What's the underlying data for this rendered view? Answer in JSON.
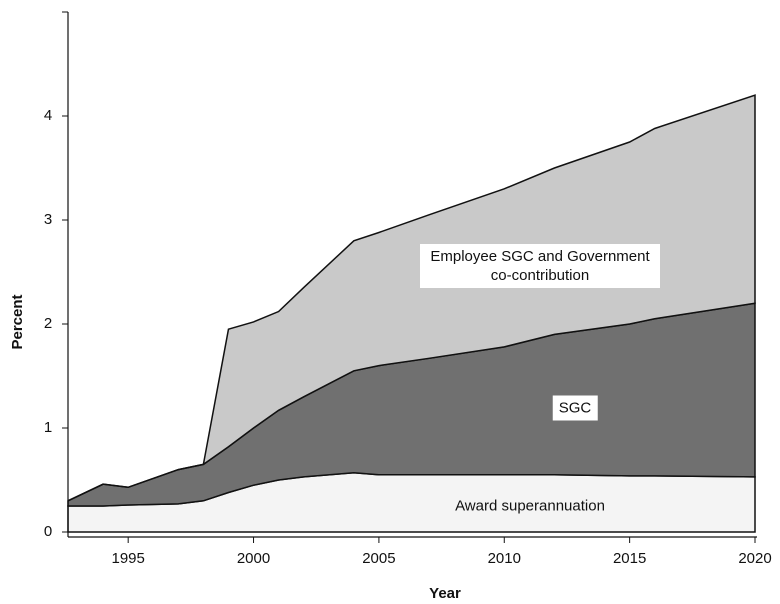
{
  "chart_data": {
    "type": "stacked_area",
    "x_label": "Year",
    "y_label": "Percent",
    "x": [
      1992.6,
      1994,
      1995,
      1997,
      1998,
      1999,
      2000,
      2001,
      2002,
      2004,
      2005,
      2007,
      2010,
      2012,
      2015,
      2016,
      2020
    ],
    "series": [
      {
        "name": "Award superannuation",
        "color": "#f4f4f4",
        "values": [
          0.25,
          0.25,
          0.26,
          0.27,
          0.3,
          0.38,
          0.45,
          0.5,
          0.53,
          0.57,
          0.55,
          0.55,
          0.55,
          0.55,
          0.54,
          0.54,
          0.53
        ]
      },
      {
        "name": "SGC",
        "color": "#707070",
        "values": [
          0.05,
          0.21,
          0.17,
          0.33,
          0.35,
          0.44,
          0.55,
          0.67,
          0.77,
          0.98,
          1.05,
          1.12,
          1.23,
          1.35,
          1.46,
          1.51,
          1.67
        ]
      },
      {
        "name": "Employee SGC and Government co-contribution",
        "color": "#c9c9c9",
        "values": [
          0,
          0,
          0,
          0,
          0,
          1.13,
          1.02,
          0.95,
          1.05,
          1.25,
          1.28,
          1.38,
          1.52,
          1.6,
          1.75,
          1.83,
          2.0
        ]
      }
    ],
    "xlim": [
      1992.6,
      2020
    ],
    "xticks": [
      1995,
      2000,
      2005,
      2010,
      2015,
      2020
    ],
    "ylim": [
      0,
      5
    ],
    "yticks": [
      0,
      1,
      2,
      3,
      4
    ]
  }
}
